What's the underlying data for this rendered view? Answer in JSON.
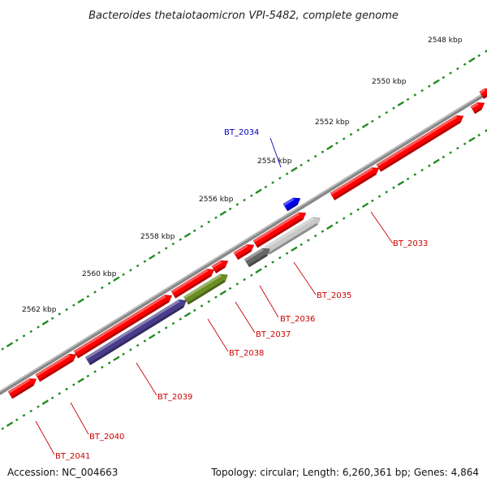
{
  "title": "Bacteroides thetaiotaomicron VPI-5482, complete genome",
  "footer": {
    "accession": "Accession: NC_004663",
    "summary": "Topology: circular; Length: 6,260,361 bp; Genes: 4,864"
  },
  "scale": {
    "tick_labels": [
      "2548 kbp",
      "2550 kbp",
      "2552 kbp",
      "2554 kbp",
      "2556 kbp",
      "2558 kbp",
      "2560 kbp",
      "2562 kbp"
    ]
  },
  "genes": [
    {
      "name": "BT_2033",
      "color": "#ff0000",
      "label_color": "#cc0000"
    },
    {
      "name": "BT_2034",
      "color": "#0000ee",
      "label_color": "#0000bb"
    },
    {
      "name": "BT_2035",
      "color": "#c8c8c8",
      "label_color": "#cc0000"
    },
    {
      "name": "BT_2036",
      "color": "#666666",
      "label_color": "#cc0000"
    },
    {
      "name": "BT_2037",
      "color": "#ff0000",
      "label_color": "#cc0000"
    },
    {
      "name": "BT_2038",
      "color": "#6b8e23",
      "label_color": "#cc0000"
    },
    {
      "name": "BT_2039",
      "color": "#483d8b",
      "label_color": "#cc0000"
    },
    {
      "name": "BT_2040",
      "color": "#ff0000",
      "label_color": "#cc0000"
    },
    {
      "name": "BT_2041",
      "color": "#ff0000",
      "label_color": "#cc0000"
    }
  ],
  "colors": {
    "backbone": "#888888",
    "tick": "#228b22",
    "unlabeled_gene": "#ff0000"
  }
}
